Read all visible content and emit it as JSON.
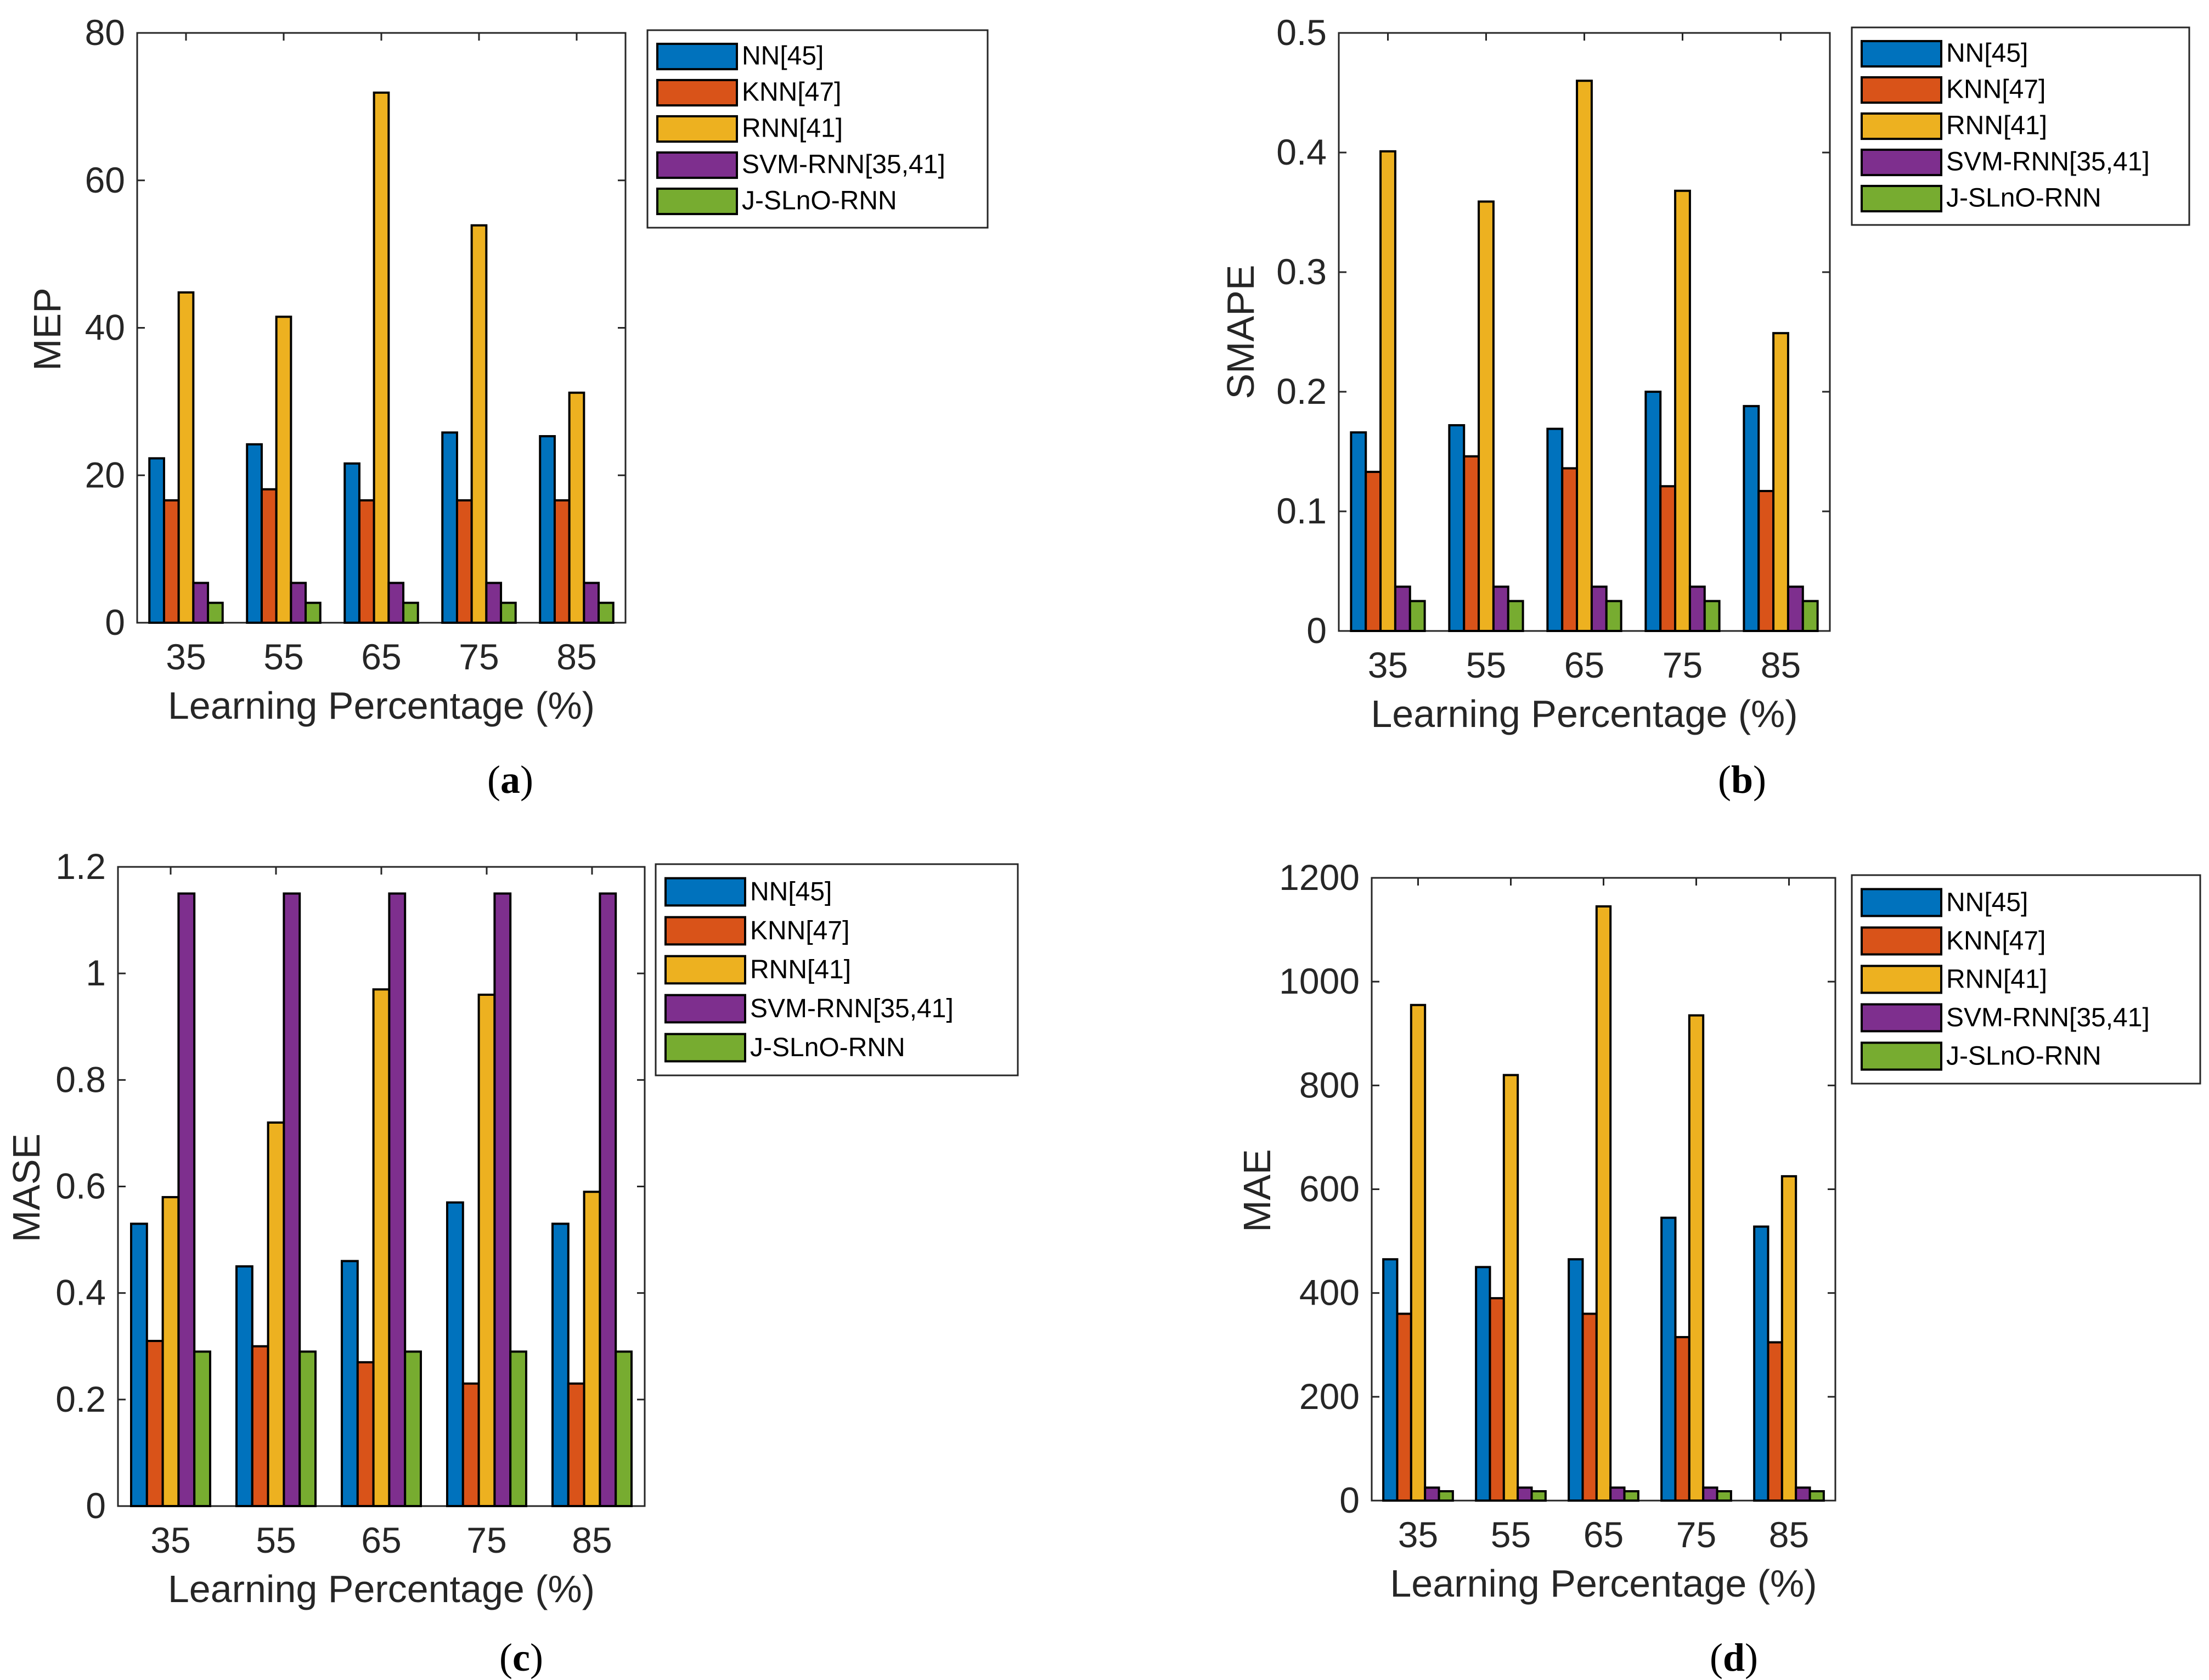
{
  "figure": {
    "panel_labels": [
      "a",
      "b",
      "c",
      "d"
    ]
  },
  "series_colors": {
    "NN[45]": "#0072BD",
    "KNN[47]": "#D95319",
    "RNN[41]": "#EDB120",
    "SVM-RNN[35,41]": "#7E2F8E",
    "J-SLnO-RNN": "#77AC30"
  },
  "chart_data": [
    {
      "type": "bar",
      "panel": "a",
      "title": "",
      "xlabel": "Learning Percentage (%)",
      "ylabel": "MEP",
      "categories": [
        "35",
        "55",
        "65",
        "75",
        "85"
      ],
      "ylim": [
        0,
        80
      ],
      "yticks": [
        "0",
        "20",
        "40",
        "60",
        "80"
      ],
      "legend_location": "outside-right-top",
      "series": [
        {
          "name": "NN[45]",
          "values": [
            22.3,
            24.2,
            21.6,
            25.8,
            25.3
          ]
        },
        {
          "name": "KNN[47]",
          "values": [
            16.6,
            18.1,
            16.6,
            16.6,
            16.6
          ]
        },
        {
          "name": "RNN[41]",
          "values": [
            44.8,
            41.5,
            71.9,
            53.9,
            31.2
          ]
        },
        {
          "name": "SVM-RNN[35,41]",
          "values": [
            5.4,
            5.4,
            5.4,
            5.4,
            5.4
          ]
        },
        {
          "name": "J-SLnO-RNN",
          "values": [
            2.7,
            2.7,
            2.7,
            2.7,
            2.7
          ]
        }
      ]
    },
    {
      "type": "bar",
      "panel": "b",
      "title": "",
      "xlabel": "Learning Percentage (%)",
      "ylabel": "SMAPE",
      "categories": [
        "35",
        "55",
        "65",
        "75",
        "85"
      ],
      "ylim": [
        0,
        0.5
      ],
      "yticks": [
        "0",
        "0.1",
        "0.2",
        "0.3",
        "0.4",
        "0.5"
      ],
      "legend_location": "outside-right-top",
      "series": [
        {
          "name": "NN[45]",
          "values": [
            0.166,
            0.172,
            0.169,
            0.2,
            0.188
          ]
        },
        {
          "name": "KNN[47]",
          "values": [
            0.133,
            0.146,
            0.136,
            0.121,
            0.117
          ]
        },
        {
          "name": "RNN[41]",
          "values": [
            0.401,
            0.359,
            0.46,
            0.368,
            0.249
          ]
        },
        {
          "name": "SVM-RNN[35,41]",
          "values": [
            0.037,
            0.037,
            0.037,
            0.037,
            0.037
          ]
        },
        {
          "name": "J-SLnO-RNN",
          "values": [
            0.025,
            0.025,
            0.025,
            0.025,
            0.025
          ]
        }
      ]
    },
    {
      "type": "bar",
      "panel": "c",
      "title": "",
      "xlabel": "Learning Percentage (%)",
      "ylabel": "MASE",
      "categories": [
        "35",
        "55",
        "65",
        "75",
        "85"
      ],
      "ylim": [
        0,
        1.2
      ],
      "yticks": [
        "0",
        "0.2",
        "0.4",
        "0.6",
        "0.8",
        "1",
        "1.2"
      ],
      "legend_location": "outside-right-top",
      "series": [
        {
          "name": "NN[45]",
          "values": [
            0.53,
            0.45,
            0.46,
            0.57,
            0.53
          ]
        },
        {
          "name": "KNN[47]",
          "values": [
            0.31,
            0.3,
            0.27,
            0.23,
            0.23
          ]
        },
        {
          "name": "RNN[41]",
          "values": [
            0.58,
            0.72,
            0.97,
            0.96,
            0.59
          ]
        },
        {
          "name": "SVM-RNN[35,41]",
          "values": [
            1.15,
            1.15,
            1.15,
            1.15,
            1.15
          ]
        },
        {
          "name": "J-SLnO-RNN",
          "values": [
            0.29,
            0.29,
            0.29,
            0.29,
            0.29
          ]
        }
      ]
    },
    {
      "type": "bar",
      "panel": "d",
      "title": "",
      "xlabel": "Learning Percentage (%)",
      "ylabel": "MAE",
      "categories": [
        "35",
        "55",
        "65",
        "75",
        "85"
      ],
      "ylim": [
        0,
        1200
      ],
      "yticks": [
        "0",
        "200",
        "400",
        "600",
        "800",
        "1000",
        "1200"
      ],
      "legend_location": "outside-right-top",
      "series": [
        {
          "name": "NN[45]",
          "values": [
            465,
            450,
            465,
            545,
            528
          ]
        },
        {
          "name": "KNN[47]",
          "values": [
            360,
            390,
            360,
            315,
            305
          ]
        },
        {
          "name": "RNN[41]",
          "values": [
            955,
            820,
            1145,
            935,
            625
          ]
        },
        {
          "name": "SVM-RNN[35,41]",
          "values": [
            25,
            25,
            25,
            25,
            25
          ]
        },
        {
          "name": "J-SLnO-RNN",
          "values": [
            18,
            18,
            18,
            18,
            18
          ]
        }
      ]
    }
  ]
}
